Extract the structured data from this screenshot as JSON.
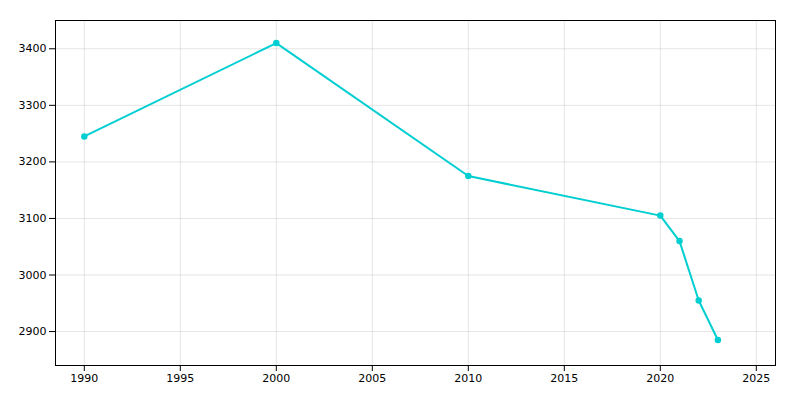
{
  "chart_data": {
    "type": "line",
    "x": [
      1990,
      2000,
      2010,
      2020,
      2021,
      2022,
      2023
    ],
    "values": [
      3245,
      3410,
      3175,
      3105,
      3060,
      2955,
      2885
    ],
    "color": "#00CED1",
    "marker": "o",
    "xlim": [
      1988.5,
      2026
    ],
    "ylim": [
      2840,
      3450
    ],
    "xticks": [
      1990,
      1995,
      2000,
      2005,
      2010,
      2015,
      2020,
      2025
    ],
    "yticks": [
      2900,
      3000,
      3100,
      3200,
      3300,
      3400
    ],
    "grid": true
  }
}
